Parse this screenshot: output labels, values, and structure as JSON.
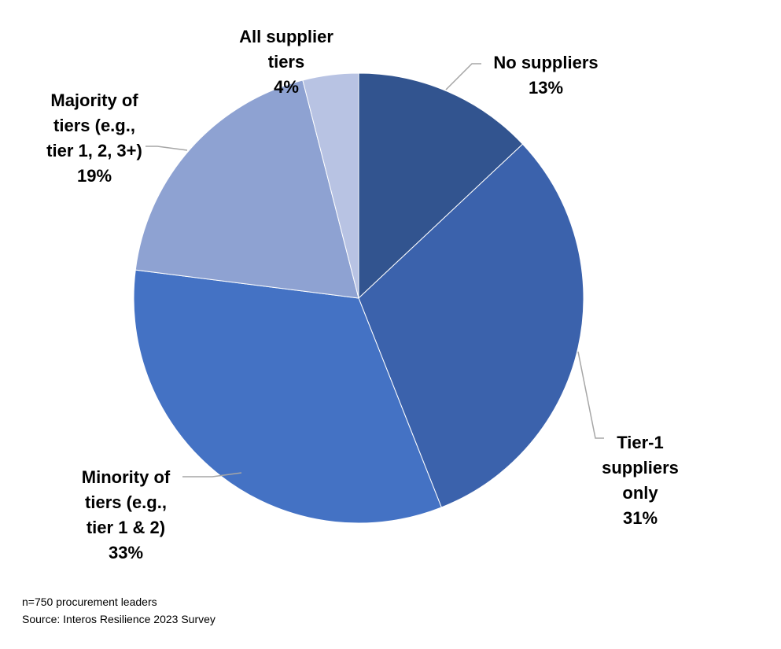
{
  "chart_data": {
    "type": "pie",
    "start_angle_deg": 0,
    "direction": "clockwise",
    "slices": [
      {
        "key": "no-suppliers",
        "label_lines": [
          "No suppliers"
        ],
        "value": 13,
        "value_label": "13%",
        "color": "#32548f"
      },
      {
        "key": "tier-1-only",
        "label_lines": [
          "Tier-1",
          "suppliers",
          "only"
        ],
        "value": 31,
        "value_label": "31%",
        "color": "#3b62ac"
      },
      {
        "key": "minority-of-tiers",
        "label_lines": [
          "Minority of",
          "tiers (e.g.,",
          "tier 1 & 2)"
        ],
        "value": 33,
        "value_label": "33%",
        "color": "#4472c4"
      },
      {
        "key": "majority-of-tiers",
        "label_lines": [
          "Majority of",
          "tiers (e.g.,",
          "tier 1, 2, 3+)"
        ],
        "value": 19,
        "value_label": "19%",
        "color": "#8ea2d2"
      },
      {
        "key": "all-supplier-tiers",
        "label_lines": [
          "All supplier",
          "tiers"
        ],
        "value": 4,
        "value_label": "4%",
        "color": "#b8c3e3"
      }
    ],
    "leader_line_color": "#a6a6a6"
  },
  "footnotes": {
    "sample": "n=750 procurement leaders",
    "source": "Source: Interos Resilience 2023 Survey"
  }
}
